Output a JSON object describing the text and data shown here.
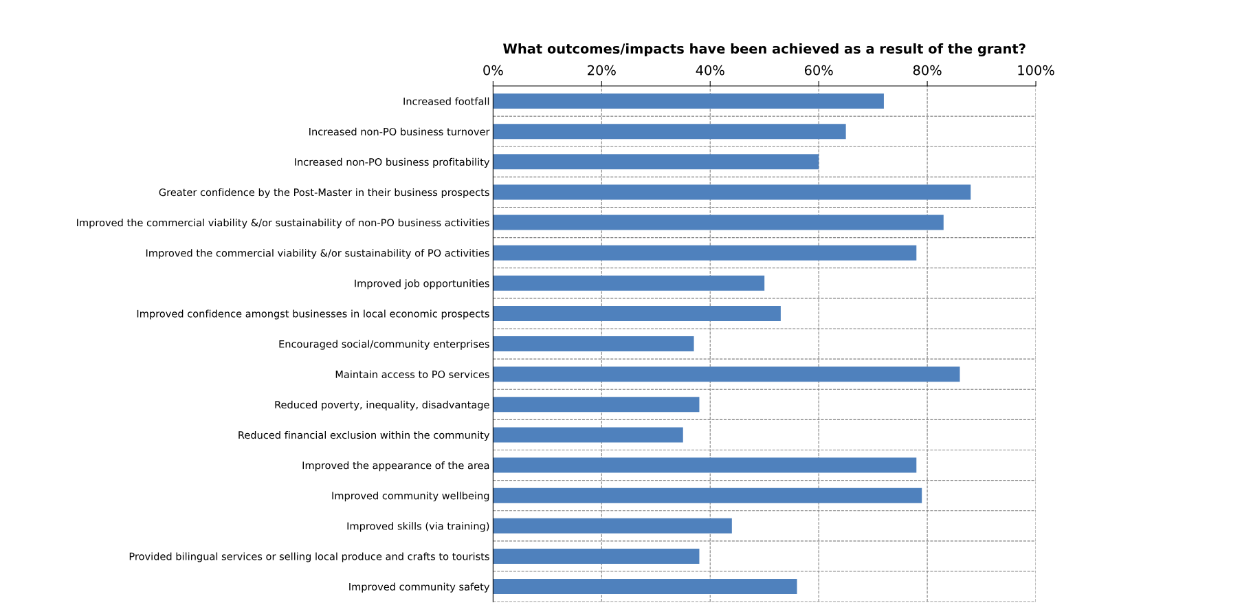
{
  "chart_data": {
    "type": "bar",
    "orientation": "horizontal",
    "title": "What outcomes/impacts have been achieved as a result of the grant?",
    "categories": [
      "Increased footfall",
      "Increased non-PO business turnover",
      "Increased non-PO business profitability",
      "Greater confidence by the Post-Master in their business prospects",
      "Improved the commercial viability &/or sustainability of non-PO business activities",
      "Improved the commercial viability &/or sustainability of PO activities",
      "Improved job opportunities",
      "Improved confidence amongst businesses in local economic prospects",
      "Encouraged social/community enterprises",
      "Maintain access to PO services",
      "Reduced poverty, inequality, disadvantage",
      "Reduced financial exclusion within the community",
      "Improved the appearance of the area",
      "Improved community wellbeing",
      "Improved skills (via training)",
      "Provided bilingual services or selling local produce and crafts to tourists",
      "Improved community safety"
    ],
    "values": [
      72,
      65,
      60,
      88,
      83,
      78,
      50,
      53,
      37,
      86,
      38,
      35,
      78,
      79,
      44,
      38,
      56
    ],
    "color": "#4f81bd",
    "xlim": [
      0,
      100
    ],
    "xticks": [
      {
        "value": 0,
        "label": "0%"
      },
      {
        "value": 20,
        "label": "20%"
      },
      {
        "value": 40,
        "label": "40%"
      },
      {
        "value": 60,
        "label": "60%"
      },
      {
        "value": 80,
        "label": "80%"
      },
      {
        "value": 100,
        "label": "100%"
      }
    ],
    "grid": true
  }
}
